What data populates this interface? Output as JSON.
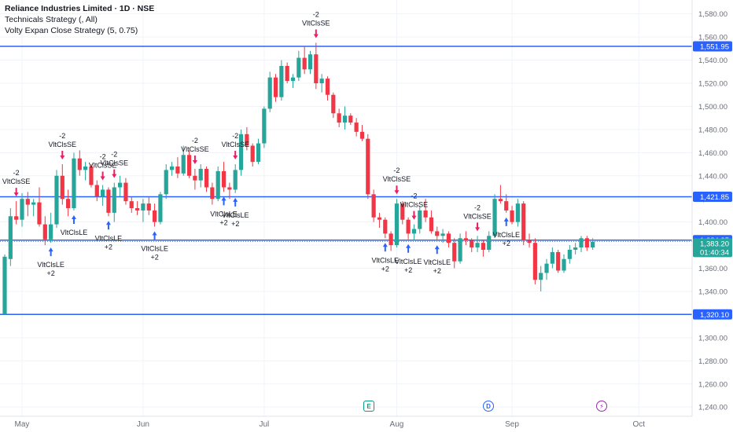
{
  "legend": {
    "symbol": "Reliance Industries Limited · 1D · NSE",
    "indicator1": "Technicals Strategy (, All)",
    "indicator2": "Volty Expan Close Strategy (5, 0.75)"
  },
  "colors": {
    "up": "#26a69a",
    "down": "#f23645",
    "hline": "#2962ff",
    "grid": "#f0f3fa",
    "text": "#131722",
    "axis_text": "#6a6d78",
    "last_price_line": "#26a69a",
    "buy_arrow": "#2962ff",
    "sell_arrow": "#e91e63"
  },
  "price_labels": {
    "level_1551": "1,551.95",
    "level_1421": "1,421.85",
    "level_1384": "1,384.35",
    "last_price": "1,383.20",
    "countdown": "01:40:34",
    "level_1320": "1,320.10"
  },
  "event_badges": {
    "earnings": "E",
    "dividend": "D",
    "split": "⚡"
  },
  "chart_data": {
    "type": "candlestick",
    "ylim": [
      1232,
      1592
    ],
    "y_ticks": [
      1240,
      1260,
      1280,
      1300,
      1320,
      1340,
      1360,
      1380,
      1400,
      1420,
      1440,
      1460,
      1480,
      1500,
      1520,
      1540,
      1560,
      1580
    ],
    "y_tick_labels": [
      "1,240.00",
      "1,260.00",
      "1,280.00",
      "1,300.00",
      "1,320.00",
      "1,340.00",
      "1,360.00",
      "1,380.00",
      "1,400.00",
      "1,420.00",
      "1,440.00",
      "1,460.00",
      "1,480.00",
      "1,500.00",
      "1,520.00",
      "1,540.00",
      "1,560.00",
      "1,580.00"
    ],
    "x_labels": [
      {
        "label": "May",
        "index": 3
      },
      {
        "label": "Jun",
        "index": 24
      },
      {
        "label": "Jul",
        "index": 45
      },
      {
        "label": "Aug",
        "index": 68
      },
      {
        "label": "Sep",
        "index": 88
      },
      {
        "label": "Oct",
        "index": 110
      }
    ],
    "horizontal_levels": [
      1551.95,
      1421.85,
      1384.35,
      1320.1
    ],
    "last_price": 1383.2,
    "candles": [
      [
        1320,
        1372,
        1320,
        1370
      ],
      [
        1368,
        1412,
        1362,
        1405
      ],
      [
        1405,
        1418,
        1398,
        1402
      ],
      [
        1402,
        1425,
        1396,
        1420
      ],
      [
        1420,
        1426,
        1405,
        1415
      ],
      [
        1415,
        1420,
        1405,
        1417
      ],
      [
        1417,
        1430,
        1396,
        1398
      ],
      [
        1398,
        1405,
        1380,
        1385
      ],
      [
        1385,
        1408,
        1382,
        1398
      ],
      [
        1398,
        1445,
        1395,
        1440
      ],
      [
        1440,
        1450,
        1415,
        1420
      ],
      [
        1420,
        1428,
        1405,
        1412
      ],
      [
        1412,
        1460,
        1410,
        1455
      ],
      [
        1455,
        1462,
        1440,
        1445
      ],
      [
        1445,
        1452,
        1436,
        1448
      ],
      [
        1448,
        1450,
        1430,
        1432
      ],
      [
        1432,
        1436,
        1418,
        1422
      ],
      [
        1422,
        1432,
        1414,
        1428
      ],
      [
        1428,
        1430,
        1405,
        1408
      ],
      [
        1408,
        1434,
        1400,
        1430
      ],
      [
        1430,
        1440,
        1422,
        1434
      ],
      [
        1434,
        1438,
        1415,
        1418
      ],
      [
        1418,
        1422,
        1408,
        1412
      ],
      [
        1412,
        1418,
        1406,
        1410
      ],
      [
        1410,
        1420,
        1400,
        1416
      ],
      [
        1416,
        1422,
        1406,
        1410
      ],
      [
        1410,
        1416,
        1396,
        1400
      ],
      [
        1400,
        1426,
        1398,
        1424
      ],
      [
        1424,
        1450,
        1420,
        1445
      ],
      [
        1445,
        1452,
        1440,
        1448
      ],
      [
        1448,
        1456,
        1438,
        1442
      ],
      [
        1442,
        1466,
        1440,
        1458
      ],
      [
        1458,
        1462,
        1438,
        1440
      ],
      [
        1440,
        1446,
        1428,
        1436
      ],
      [
        1436,
        1450,
        1430,
        1446
      ],
      [
        1446,
        1448,
        1426,
        1430
      ],
      [
        1430,
        1434,
        1415,
        1420
      ],
      [
        1420,
        1448,
        1418,
        1444
      ],
      [
        1444,
        1452,
        1426,
        1430
      ],
      [
        1430,
        1434,
        1420,
        1428
      ],
      [
        1428,
        1450,
        1425,
        1445
      ],
      [
        1445,
        1480,
        1440,
        1476
      ],
      [
        1476,
        1482,
        1462,
        1466
      ],
      [
        1466,
        1468,
        1448,
        1452
      ],
      [
        1452,
        1472,
        1450,
        1468
      ],
      [
        1468,
        1500,
        1464,
        1498
      ],
      [
        1498,
        1530,
        1495,
        1525
      ],
      [
        1525,
        1528,
        1504,
        1508
      ],
      [
        1508,
        1540,
        1505,
        1535
      ],
      [
        1535,
        1538,
        1520,
        1522
      ],
      [
        1522,
        1528,
        1516,
        1525
      ],
      [
        1525,
        1548,
        1522,
        1542
      ],
      [
        1542,
        1552,
        1528,
        1532
      ],
      [
        1532,
        1548,
        1528,
        1545
      ],
      [
        1545,
        1555,
        1515,
        1520
      ],
      [
        1520,
        1528,
        1512,
        1524
      ],
      [
        1524,
        1526,
        1505,
        1510
      ],
      [
        1510,
        1512,
        1490,
        1494
      ],
      [
        1494,
        1498,
        1482,
        1486
      ],
      [
        1486,
        1500,
        1480,
        1492
      ],
      [
        1492,
        1494,
        1484,
        1486
      ],
      [
        1486,
        1490,
        1474,
        1478
      ],
      [
        1478,
        1484,
        1470,
        1472
      ],
      [
        1472,
        1476,
        1420,
        1424
      ],
      [
        1424,
        1428,
        1400,
        1404
      ],
      [
        1404,
        1408,
        1395,
        1402
      ],
      [
        1402,
        1404,
        1386,
        1390
      ],
      [
        1390,
        1392,
        1375,
        1380
      ],
      [
        1380,
        1420,
        1378,
        1416
      ],
      [
        1416,
        1418,
        1398,
        1402
      ],
      [
        1402,
        1404,
        1385,
        1390
      ],
      [
        1390,
        1398,
        1384,
        1394
      ],
      [
        1394,
        1414,
        1390,
        1410
      ],
      [
        1410,
        1420,
        1400,
        1404
      ],
      [
        1404,
        1410,
        1390,
        1392
      ],
      [
        1392,
        1396,
        1384,
        1388
      ],
      [
        1388,
        1394,
        1382,
        1390
      ],
      [
        1390,
        1392,
        1378,
        1382
      ],
      [
        1382,
        1386,
        1360,
        1366
      ],
      [
        1366,
        1390,
        1364,
        1386
      ],
      [
        1386,
        1392,
        1380,
        1384
      ],
      [
        1384,
        1386,
        1374,
        1378
      ],
      [
        1378,
        1388,
        1374,
        1382
      ],
      [
        1382,
        1384,
        1370,
        1376
      ],
      [
        1376,
        1392,
        1374,
        1388
      ],
      [
        1388,
        1424,
        1386,
        1420
      ],
      [
        1420,
        1432,
        1416,
        1418
      ],
      [
        1418,
        1424,
        1408,
        1410
      ],
      [
        1410,
        1414,
        1398,
        1400
      ],
      [
        1400,
        1420,
        1396,
        1416
      ],
      [
        1416,
        1418,
        1380,
        1384
      ],
      [
        1384,
        1390,
        1378,
        1382
      ],
      [
        1382,
        1386,
        1346,
        1350
      ],
      [
        1350,
        1362,
        1340,
        1356
      ],
      [
        1356,
        1368,
        1350,
        1364
      ],
      [
        1364,
        1378,
        1360,
        1374
      ],
      [
        1374,
        1376,
        1356,
        1358
      ],
      [
        1358,
        1372,
        1356,
        1368
      ],
      [
        1368,
        1380,
        1364,
        1376
      ],
      [
        1376,
        1382,
        1372,
        1378
      ],
      [
        1378,
        1388,
        1374,
        1386
      ],
      [
        1386,
        1388,
        1375,
        1378
      ],
      [
        1378,
        1386,
        1376,
        1383
      ]
    ],
    "signals": [
      {
        "index": 2,
        "side": "sell",
        "text": [
          "-2",
          "VltClsSE"
        ]
      },
      {
        "index": 10,
        "side": "sell",
        "text": [
          "-2",
          "VltClsSE"
        ]
      },
      {
        "index": 8,
        "side": "buy",
        "text": [
          "VltClsLE",
          "+2"
        ]
      },
      {
        "index": 12,
        "side": "buy",
        "text": [
          "VltClsLE"
        ]
      },
      {
        "index": 19,
        "side": "sell",
        "text": [
          "-2",
          "VltClsSE"
        ]
      },
      {
        "index": 17,
        "side": "sell",
        "text": [
          "-2",
          "VltClsSE"
        ]
      },
      {
        "index": 18,
        "side": "buy",
        "text": [
          "VltClsLE",
          "+2"
        ]
      },
      {
        "index": 26,
        "side": "buy",
        "text": [
          "VltClsLE",
          "+2"
        ]
      },
      {
        "index": 33,
        "side": "sell",
        "text": [
          "-2",
          "VltClsSE"
        ]
      },
      {
        "index": 40,
        "side": "sell",
        "text": [
          "-2",
          "VltClsSE"
        ]
      },
      {
        "index": 38,
        "side": "buy",
        "text": [
          "VltClsLE",
          "+2"
        ]
      },
      {
        "index": 40,
        "side": "buy",
        "text": [
          "VltClsLE",
          "+2"
        ]
      },
      {
        "index": 54,
        "side": "sell",
        "text": [
          "-2",
          "VltClsSE"
        ]
      },
      {
        "index": 66,
        "side": "buy",
        "text": [
          "VltClsLE",
          "+2"
        ]
      },
      {
        "index": 68,
        "side": "sell",
        "text": [
          "-2",
          "VltClsSE"
        ]
      },
      {
        "index": 71,
        "side": "sell",
        "text": [
          "-2",
          "VltClsSE"
        ]
      },
      {
        "index": 70,
        "side": "buy",
        "text": [
          "VltClsLE",
          "+2"
        ]
      },
      {
        "index": 75,
        "side": "buy",
        "text": [
          "VltClsLE",
          "+2"
        ]
      },
      {
        "index": 82,
        "side": "sell",
        "text": [
          "-2",
          "VltClsSE"
        ]
      },
      {
        "index": 87,
        "side": "buy",
        "text": [
          "VltClsLE",
          "+2"
        ]
      }
    ]
  }
}
